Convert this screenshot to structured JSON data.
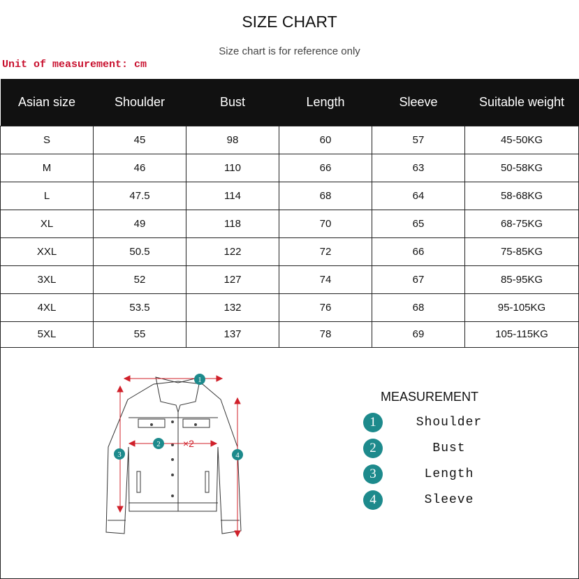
{
  "title": "SIZE CHART",
  "subtitle": "Size chart is for reference only",
  "unit": "Unit of measurement: cm",
  "headers": [
    "Asian size",
    "Shoulder",
    "Bust",
    "Length",
    "Sleeve",
    "Suitable weight"
  ],
  "rows": [
    [
      "S",
      "45",
      "98",
      "60",
      "57",
      "45-50KG"
    ],
    [
      "M",
      "46",
      "110",
      "66",
      "63",
      "50-58KG"
    ],
    [
      "L",
      "47.5",
      "114",
      "68",
      "64",
      "58-68KG"
    ],
    [
      "XL",
      "49",
      "118",
      "70",
      "65",
      "68-75KG"
    ],
    [
      "XXL",
      "50.5",
      "122",
      "72",
      "66",
      "75-85KG"
    ],
    [
      "3XL",
      "52",
      "127",
      "74",
      "67",
      "85-95KG"
    ],
    [
      "4XL",
      "53.5",
      "132",
      "76",
      "68",
      "95-105KG"
    ],
    [
      "5XL",
      "55",
      "137",
      "78",
      "69",
      "105-115KG"
    ]
  ],
  "measurement": {
    "title": "MEASUREMENT",
    "items": [
      {
        "n": "1",
        "label": "Shoulder"
      },
      {
        "n": "2",
        "label": "Bust"
      },
      {
        "n": "3",
        "label": "Length"
      },
      {
        "n": "4",
        "label": "Sleeve"
      }
    ]
  },
  "diagram": {
    "bust_multiplier": "×2",
    "accent": "#d0202a",
    "badge_color": "#1d8a8c"
  }
}
